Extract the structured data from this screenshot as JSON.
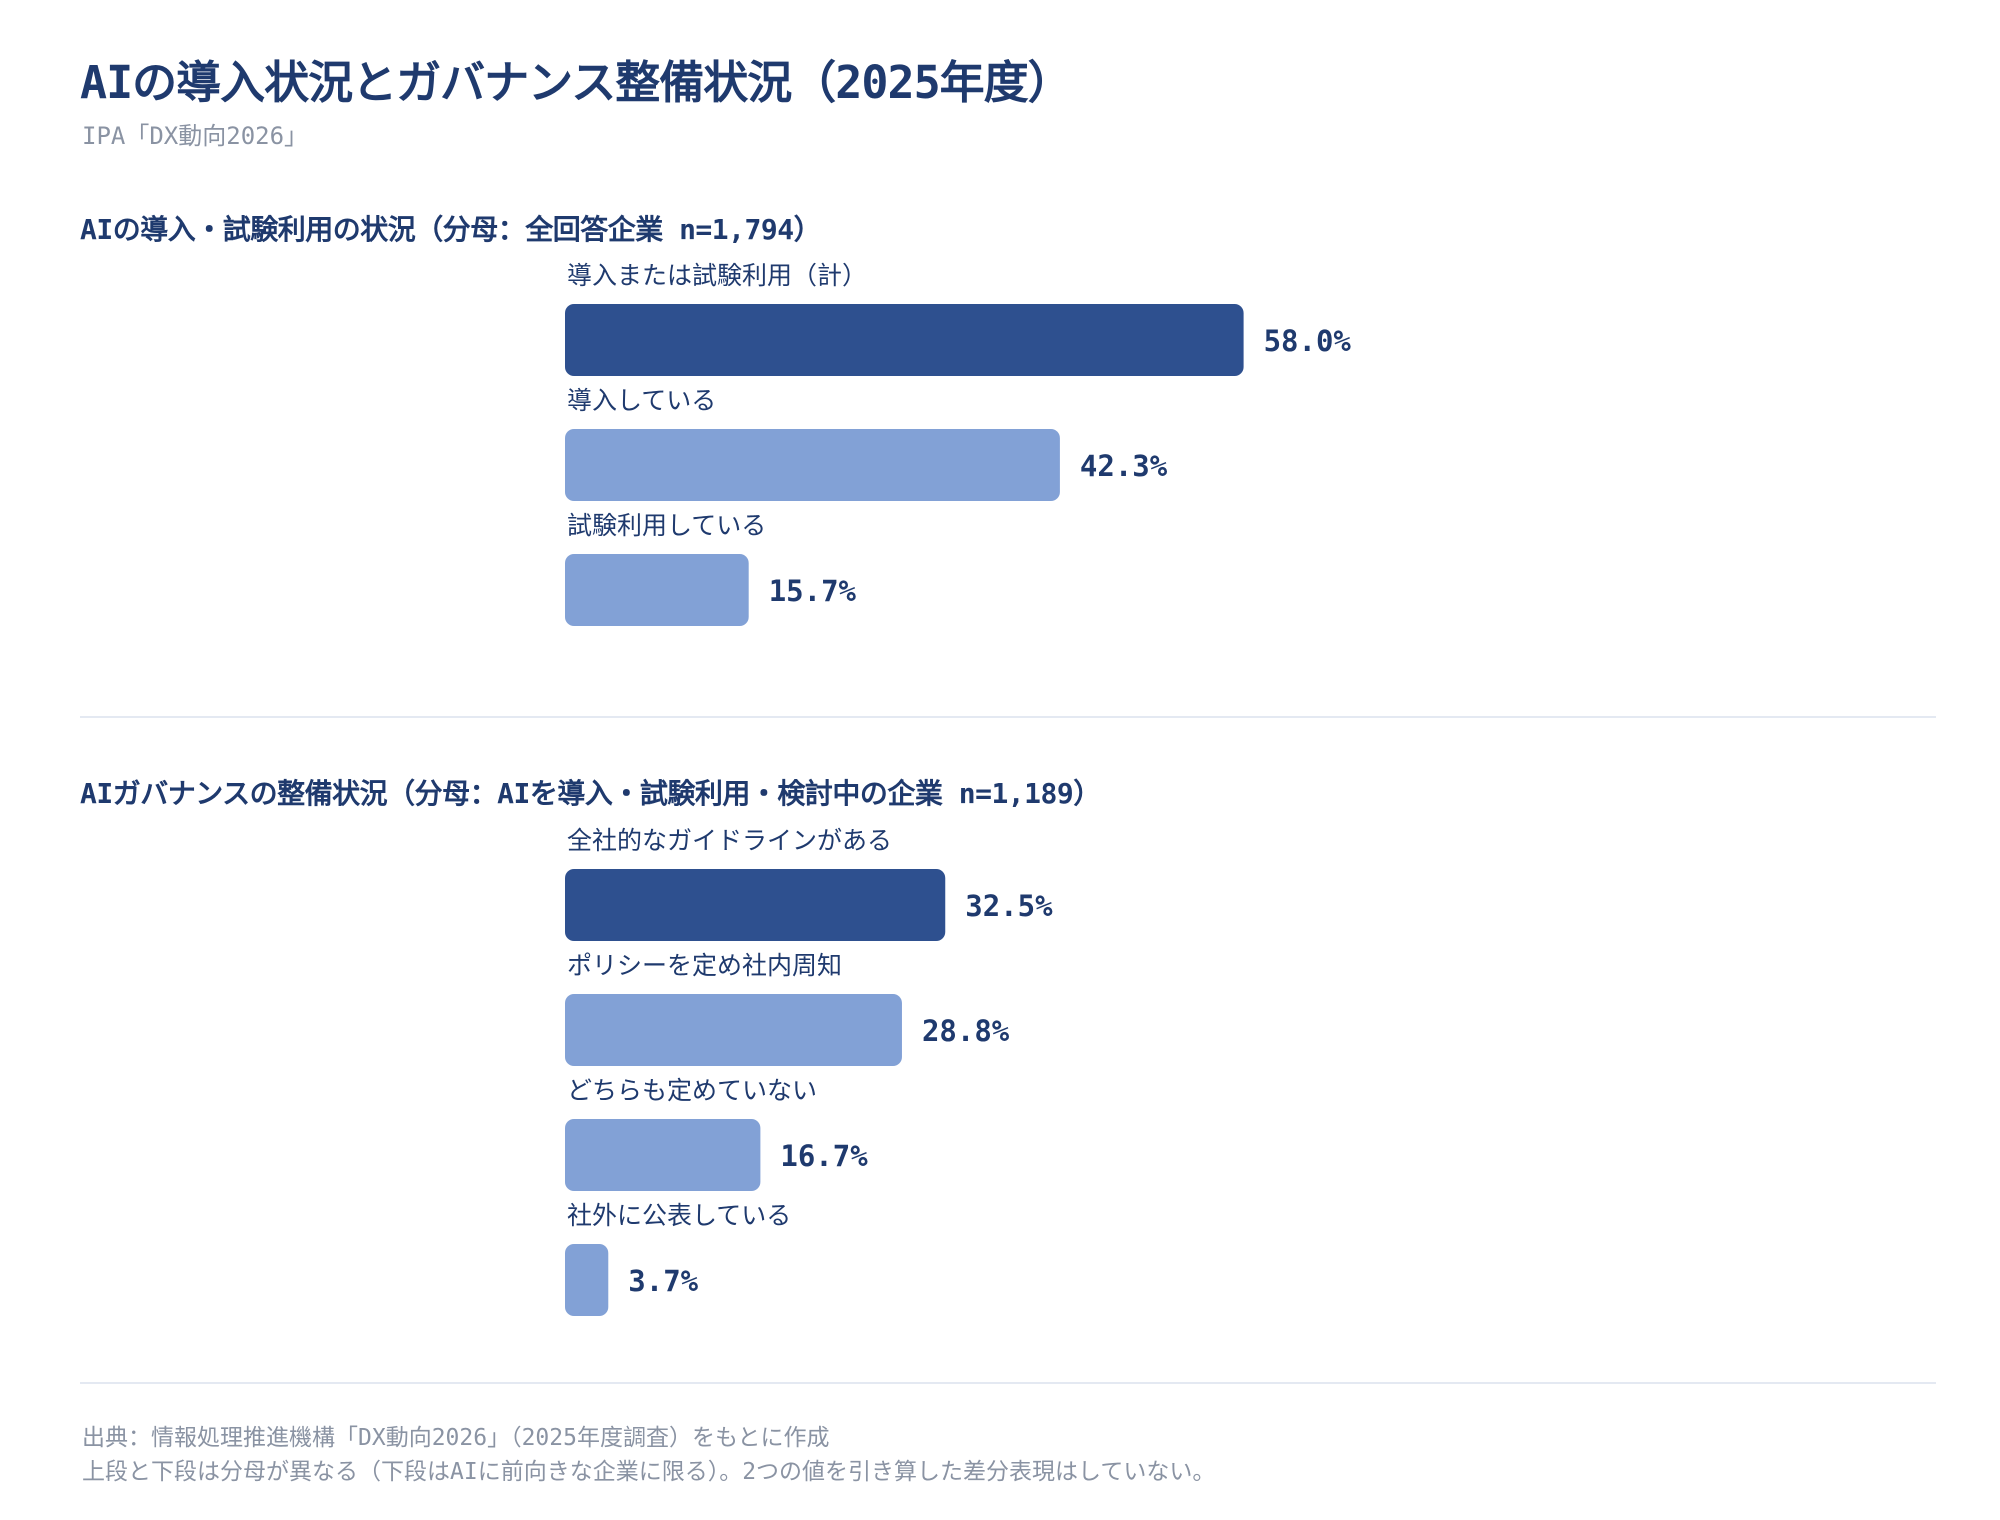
{
  "header": {
    "title": "AIの導入状況とガバナンス整備状況（2025年度）",
    "subtitle": "IPA「DX動向2026」"
  },
  "colors": {
    "primary": "#2e508f",
    "secondary": "#82a1d6",
    "text": "#1f3a6e",
    "muted": "#8a93a3"
  },
  "chart_data": [
    {
      "type": "bar",
      "orientation": "horizontal",
      "title": "AIの導入・試験利用の状況（分母：全回答企業 n=1,794）",
      "categories": [
        "導入または試験利用（計）",
        "導入している",
        "試験利用している"
      ],
      "values": [
        58.0,
        42.3,
        15.7
      ],
      "value_labels": [
        "58.0%",
        "42.3%",
        "15.7%"
      ],
      "highlight": [
        true,
        false,
        false
      ],
      "unit": "%"
    },
    {
      "type": "bar",
      "orientation": "horizontal",
      "title": "AIガバナンスの整備状況（分母：AIを導入・試験利用・検討中の企業 n=1,189）",
      "categories": [
        "全社的なガイドラインがある",
        "ポリシーを定め社内周知",
        "どちらも定めていない",
        "社外に公表している"
      ],
      "values": [
        32.5,
        28.8,
        16.7,
        3.7
      ],
      "value_labels": [
        "32.5%",
        "28.8%",
        "16.7%",
        "3.7%"
      ],
      "highlight": [
        true,
        false,
        false,
        false
      ],
      "unit": "%"
    }
  ],
  "footnotes": {
    "source": "出典：情報処理推進機構「DX動向2026」（2025年度調査）をもとに作成",
    "note": "上段と下段は分母が異なる（下段はAIに前向きな企業に限る）。2つの値を引き算した差分表現はしていない。"
  }
}
